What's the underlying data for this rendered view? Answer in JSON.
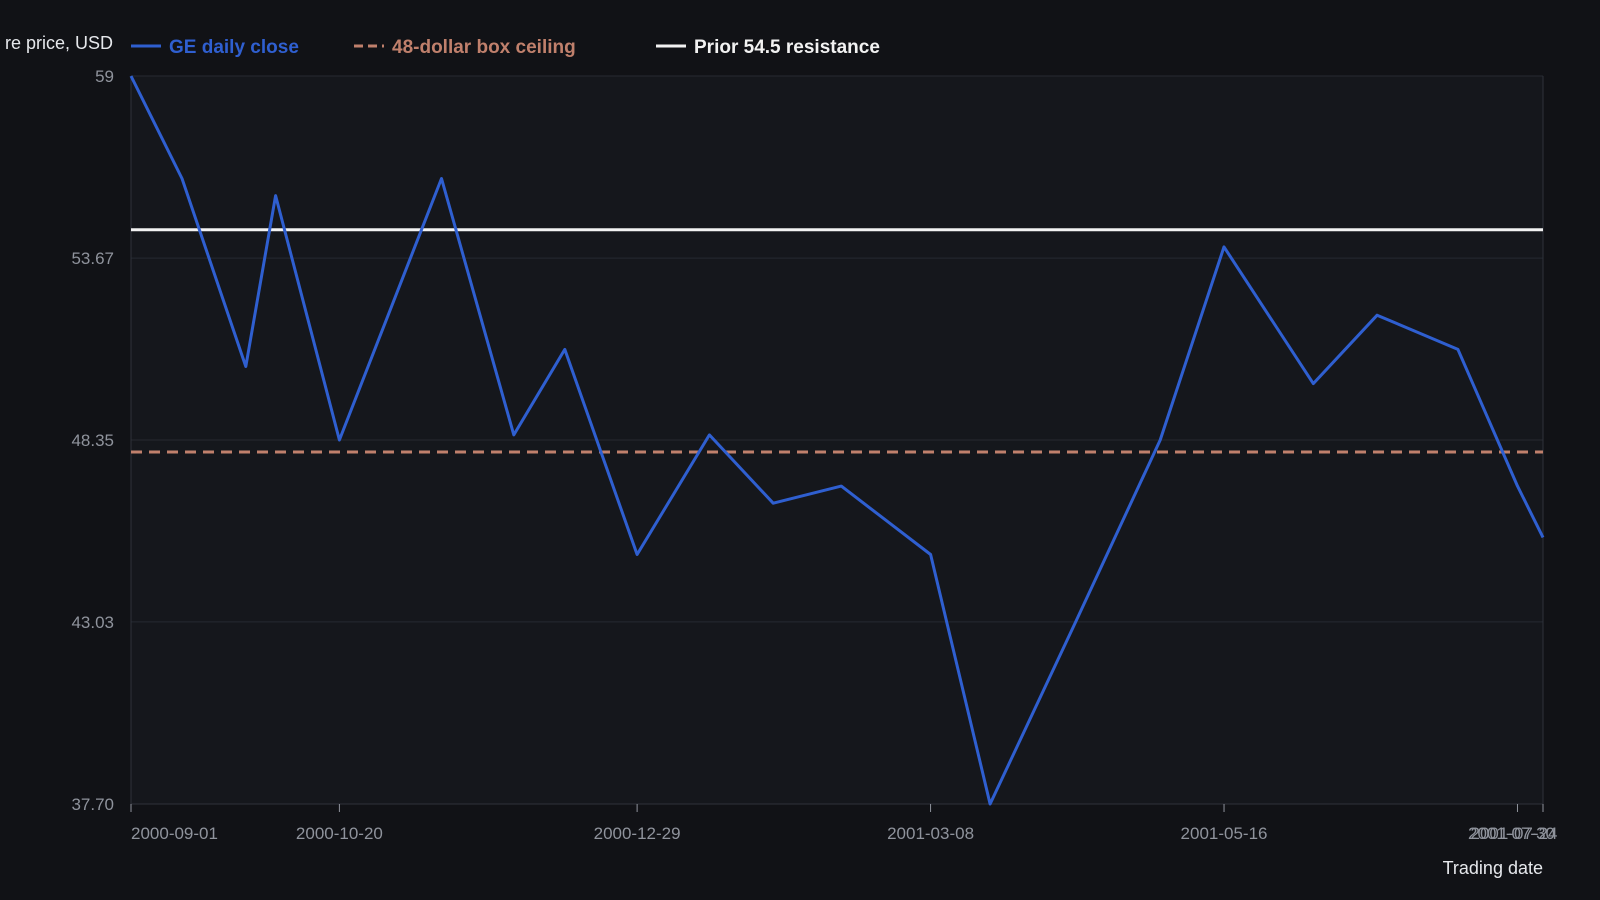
{
  "colors": {
    "background": "#111216",
    "plot_background": "#15171c",
    "grid": "#262a31",
    "axis": "#2e323a",
    "tick_text": "#8f939c",
    "series": "#2f5fd0",
    "box_ceiling": "#c0806c",
    "resistance": "#f2f2f2"
  },
  "chart_data": {
    "type": "line",
    "title": "",
    "xlabel": "Trading date",
    "ylabel": "re price, USD",
    "ylim": [
      37.7,
      59
    ],
    "y_ticks": [
      "59",
      "53.67",
      "48.35",
      "43.03",
      "37.70"
    ],
    "y_tick_values": [
      59,
      53.67,
      48.35,
      43.03,
      37.7
    ],
    "x_range": [
      "2000-09-01",
      "2001-07-30"
    ],
    "x_ticks": [
      "2000-09-01",
      "2000-10-20",
      "2000-12-29",
      "2001-03-08",
      "2001-05-16",
      "2001-07-24",
      "2001-07-30"
    ],
    "grid": true,
    "legend_position": "top-left",
    "series": [
      {
        "name": "GE daily close",
        "style": "solid",
        "color": "#2f5fd0",
        "points": [
          {
            "x": "2000-09-01",
            "y": 59.0
          },
          {
            "x": "2000-09-13",
            "y": 56.0
          },
          {
            "x": "2000-09-28",
            "y": 50.5
          },
          {
            "x": "2000-10-05",
            "y": 55.5
          },
          {
            "x": "2000-10-20",
            "y": 48.35
          },
          {
            "x": "2000-11-13",
            "y": 56.0
          },
          {
            "x": "2000-11-30",
            "y": 48.5
          },
          {
            "x": "2000-12-12",
            "y": 51.0
          },
          {
            "x": "2000-12-29",
            "y": 45.0
          },
          {
            "x": "2001-01-15",
            "y": 48.5
          },
          {
            "x": "2001-01-30",
            "y": 46.5
          },
          {
            "x": "2001-02-15",
            "y": 47.0
          },
          {
            "x": "2001-03-08",
            "y": 45.0
          },
          {
            "x": "2001-03-22",
            "y": 37.7
          },
          {
            "x": "2001-04-11",
            "y": 43.0
          },
          {
            "x": "2001-05-01",
            "y": 48.35
          },
          {
            "x": "2001-05-16",
            "y": 54.0
          },
          {
            "x": "2001-06-06",
            "y": 50.0
          },
          {
            "x": "2001-06-21",
            "y": 52.0
          },
          {
            "x": "2001-07-10",
            "y": 51.0
          },
          {
            "x": "2001-07-24",
            "y": 47.0
          },
          {
            "x": "2001-07-30",
            "y": 45.5
          }
        ]
      },
      {
        "name": "48-dollar box ceiling",
        "style": "dashed",
        "color": "#c0806c",
        "points": [
          {
            "x": "2000-09-01",
            "y": 48.0
          },
          {
            "x": "2001-07-30",
            "y": 48.0
          }
        ]
      },
      {
        "name": "Prior 54.5 resistance",
        "style": "solid",
        "color": "#f2f2f2",
        "points": [
          {
            "x": "2000-09-01",
            "y": 54.5
          },
          {
            "x": "2001-07-30",
            "y": 54.5
          }
        ]
      }
    ]
  }
}
